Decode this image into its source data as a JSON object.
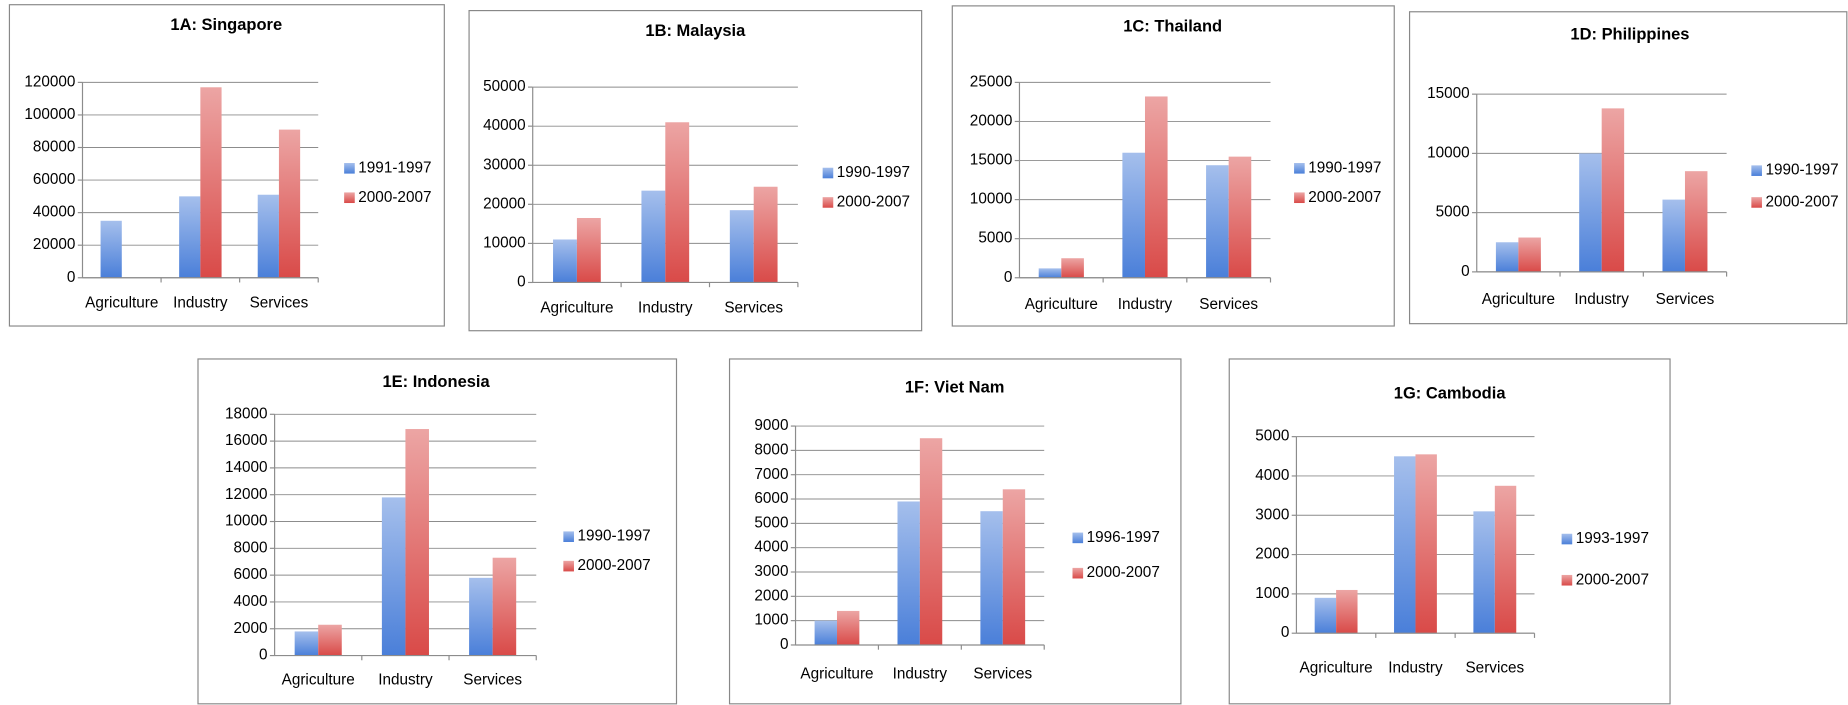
{
  "chart_data": [
    {
      "type": "bar",
      "title": "1A: Singapore",
      "categories": [
        "Agriculture",
        "Industry",
        "Services"
      ],
      "series": [
        {
          "name": "1991-1997",
          "color": "#4a7fd9",
          "values": [
            35000,
            50000,
            51000
          ]
        },
        {
          "name": "2000-2007",
          "color": "#d94a48",
          "values": [
            0,
            117000,
            91000
          ]
        }
      ],
      "ylim": [
        0,
        120000
      ],
      "yticks": [
        0,
        20000,
        40000,
        60000,
        80000,
        100000,
        120000
      ],
      "grid": true
    },
    {
      "type": "bar",
      "title": "1B: Malaysia",
      "categories": [
        "Agriculture",
        "Industry",
        "Services"
      ],
      "series": [
        {
          "name": "1990-1997",
          "color": "#4a7fd9",
          "values": [
            11000,
            23500,
            18500
          ]
        },
        {
          "name": "2000-2007",
          "color": "#d94a48",
          "values": [
            16500,
            41000,
            24500
          ]
        }
      ],
      "ylim": [
        0,
        50000
      ],
      "yticks": [
        0,
        10000,
        20000,
        30000,
        40000,
        50000
      ],
      "grid": true
    },
    {
      "type": "bar",
      "title": "1C: Thailand",
      "categories": [
        "Agriculture",
        "Industry",
        "Services"
      ],
      "series": [
        {
          "name": "1990-1997",
          "color": "#4a7fd9",
          "values": [
            1200,
            16000,
            14400
          ]
        },
        {
          "name": "2000-2007",
          "color": "#d94a48",
          "values": [
            2500,
            23200,
            15500
          ]
        }
      ],
      "ylim": [
        0,
        25000
      ],
      "yticks": [
        0,
        5000,
        10000,
        15000,
        20000,
        25000
      ],
      "grid": true
    },
    {
      "type": "bar",
      "title": "1D: Philippines",
      "categories": [
        "Agriculture",
        "Industry",
        "Services"
      ],
      "series": [
        {
          "name": "1990-1997",
          "color": "#4a7fd9",
          "values": [
            2500,
            10000,
            6100
          ]
        },
        {
          "name": "2000-2007",
          "color": "#d94a48",
          "values": [
            2900,
            13800,
            8500
          ]
        }
      ],
      "ylim": [
        0,
        15000
      ],
      "yticks": [
        0,
        5000,
        10000,
        15000
      ],
      "grid": true
    },
    {
      "type": "bar",
      "title": "1E: Indonesia",
      "categories": [
        "Agriculture",
        "Industry",
        "Services"
      ],
      "series": [
        {
          "name": "1990-1997",
          "color": "#4a7fd9",
          "values": [
            1800,
            11800,
            5800
          ]
        },
        {
          "name": "2000-2007",
          "color": "#d94a48",
          "values": [
            2300,
            16900,
            7300
          ]
        }
      ],
      "ylim": [
        0,
        18000
      ],
      "yticks": [
        0,
        2000,
        4000,
        6000,
        8000,
        10000,
        12000,
        14000,
        16000,
        18000
      ],
      "grid": true
    },
    {
      "type": "bar",
      "title": "1F: Viet Nam",
      "categories": [
        "Agriculture",
        "Industry",
        "Services"
      ],
      "series": [
        {
          "name": "1996-1997",
          "color": "#4a7fd9",
          "values": [
            1000,
            5900,
            5500
          ]
        },
        {
          "name": "2000-2007",
          "color": "#d94a48",
          "values": [
            1400,
            8500,
            6400
          ]
        }
      ],
      "ylim": [
        0,
        9000
      ],
      "yticks": [
        0,
        1000,
        2000,
        3000,
        4000,
        5000,
        6000,
        7000,
        8000,
        9000
      ],
      "grid": true
    },
    {
      "type": "bar",
      "title": "1G: Cambodia",
      "categories": [
        "Agriculture",
        "Industry",
        "Services"
      ],
      "series": [
        {
          "name": "1993-1997",
          "color": "#4a7fd9",
          "values": [
            900,
            4500,
            3100
          ]
        },
        {
          "name": "2000-2007",
          "color": "#d94a48",
          "values": [
            1100,
            4550,
            3750
          ]
        }
      ],
      "ylim": [
        0,
        5000
      ],
      "yticks": [
        0,
        1000,
        2000,
        3000,
        4000,
        5000
      ],
      "grid": true
    }
  ]
}
